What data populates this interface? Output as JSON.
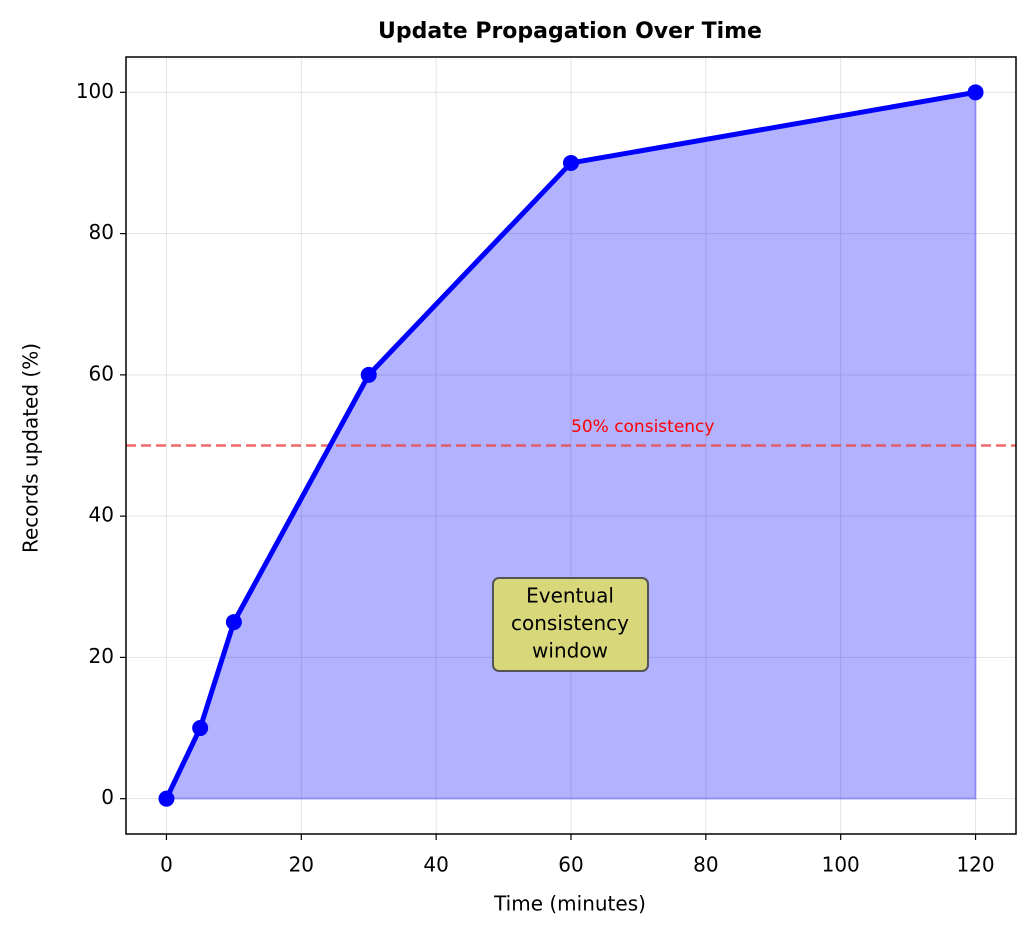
{
  "chart_data": {
    "type": "area-line",
    "title": "Update Propagation Over Time",
    "xlabel": "Time (minutes)",
    "ylabel": "Records updated (%)",
    "x": [
      0,
      5,
      10,
      30,
      60,
      120
    ],
    "values": [
      0,
      10,
      25,
      60,
      90,
      100
    ],
    "color": "#0000ff",
    "xlim": [
      -6,
      126
    ],
    "xticks": [
      0,
      20,
      40,
      60,
      80,
      100,
      120
    ],
    "ylim": [
      -5,
      105
    ],
    "yticks": [
      0,
      20,
      40,
      60,
      80,
      100
    ],
    "grid": true,
    "hline": {
      "value": 50,
      "label": "50% consistency",
      "color": "#ee4444"
    },
    "annotation": [
      "Eventual",
      "consistency",
      "window"
    ],
    "annotation_color": "#d8d87a"
  }
}
